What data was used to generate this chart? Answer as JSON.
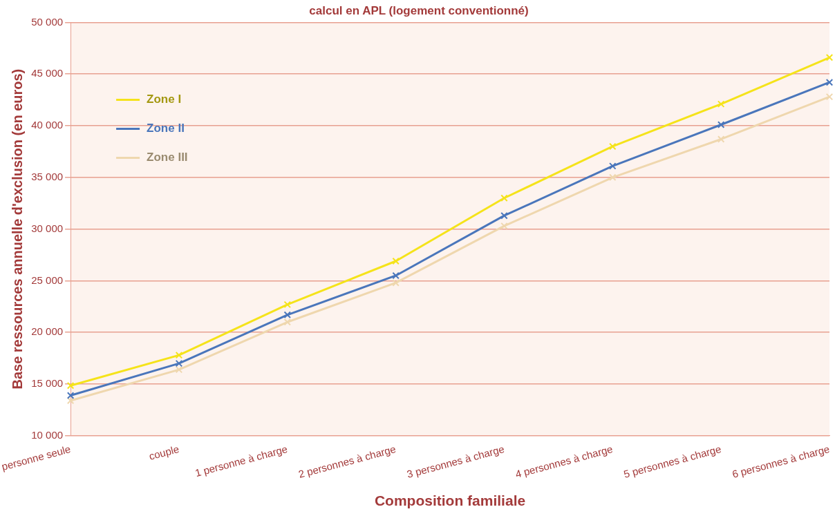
{
  "chart_data": {
    "type": "line",
    "title": "calcul en APL (logement conventionné)",
    "xlabel": "Composition familiale",
    "ylabel": "Base ressources annuelle d'exclusion (en euros)",
    "categories": [
      "personne seule",
      "couple",
      "1 personne à charge",
      "2 personnes à charge",
      "3 personnes à charge",
      "4 personnes à charge",
      "5 personnes à charge",
      "6 personnes à charge"
    ],
    "series": [
      {
        "name": "Zone I",
        "color": "#f5e31a",
        "values": [
          14850,
          17800,
          22700,
          26900,
          33000,
          38000,
          42100,
          46600
        ]
      },
      {
        "name": "Zone II",
        "color": "#4a76bb",
        "values": [
          13900,
          17000,
          21700,
          25500,
          31300,
          36100,
          40100,
          44200
        ]
      },
      {
        "name": "Zone III",
        "color": "#efd7ae",
        "values": [
          13400,
          16400,
          21000,
          24800,
          30300,
          35000,
          38700,
          42800
        ]
      }
    ],
    "ylim": [
      10000,
      50000
    ],
    "yticks": [
      {
        "value": 10000,
        "label": "10 000"
      },
      {
        "value": 15000,
        "label": "15 000"
      },
      {
        "value": 20000,
        "label": "20 000"
      },
      {
        "value": 25000,
        "label": "25 000"
      },
      {
        "value": 30000,
        "label": "30 000"
      },
      {
        "value": 35000,
        "label": "35 000"
      },
      {
        "value": 40000,
        "label": "40 000"
      },
      {
        "value": 45000,
        "label": "45 000"
      },
      {
        "value": 50000,
        "label": "50 000"
      }
    ],
    "grid": "y",
    "legend": "top left",
    "marker": "cross",
    "line_style": "solid"
  }
}
